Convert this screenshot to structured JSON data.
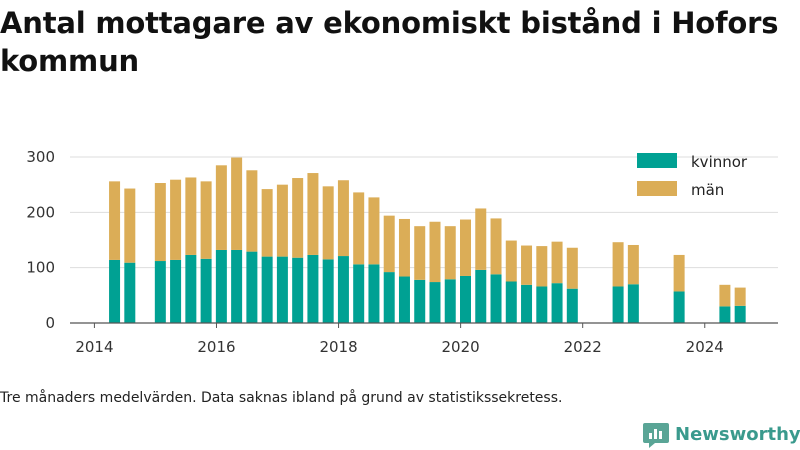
{
  "title": "Antal mottagare av ekonomiskt bistånd i Hofors kommun",
  "footnote": "Tre månaders medelvärden. Data saknas ibland på grund av statistikssekretess.",
  "logo": {
    "text": "Newsworthy",
    "icon": "newsworthy-logo-icon"
  },
  "colors": {
    "kvinnor": "#00a193",
    "man": "#dbad57",
    "grid": "#dddddd",
    "axis": "#555555"
  },
  "chart_data": {
    "type": "bar",
    "stacked": true,
    "xlim": [
      2013.6,
      2025.2
    ],
    "ylim": [
      0,
      300
    ],
    "x_ticks": [
      2014,
      2016,
      2018,
      2020,
      2022,
      2024
    ],
    "y_ticks": [
      0,
      100,
      200,
      300
    ],
    "grid": true,
    "legend_position": "top-right",
    "x": [
      2014.33,
      2014.58,
      2015.08,
      2015.33,
      2015.58,
      2015.83,
      2016.08,
      2016.33,
      2016.58,
      2016.83,
      2017.08,
      2017.33,
      2017.58,
      2017.83,
      2018.08,
      2018.33,
      2018.58,
      2018.83,
      2019.08,
      2019.33,
      2019.58,
      2019.83,
      2020.08,
      2020.33,
      2020.58,
      2020.83,
      2021.08,
      2021.33,
      2021.58,
      2021.83,
      2022.58,
      2022.83,
      2023.58,
      2024.33,
      2024.58
    ],
    "series": [
      {
        "name": "kvinnor",
        "values": [
          114,
          109,
          112,
          114,
          123,
          116,
          132,
          132,
          129,
          120,
          120,
          118,
          123,
          115,
          121,
          106,
          106,
          92,
          84,
          78,
          74,
          79,
          85,
          96,
          88,
          75,
          69,
          66,
          72,
          62,
          66,
          70,
          57,
          30,
          31
        ]
      },
      {
        "name": "män",
        "values": [
          142,
          134,
          141,
          145,
          140,
          140,
          153,
          167,
          147,
          122,
          130,
          144,
          148,
          132,
          137,
          130,
          121,
          102,
          104,
          97,
          109,
          96,
          102,
          111,
          101,
          74,
          71,
          73,
          75,
          74,
          80,
          71,
          66,
          39,
          33
        ]
      }
    ]
  }
}
